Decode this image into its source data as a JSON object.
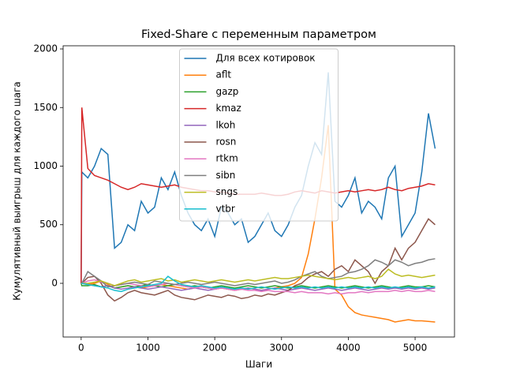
{
  "chart_data": {
    "type": "line",
    "title": "Fixed-Share с переменным параметром",
    "x_label": "Шаги",
    "y_label": "Кумулятивный выигрыш для каждого шага",
    "x": [
      0,
      10,
      100,
      200,
      300,
      400,
      500,
      600,
      700,
      800,
      900,
      1000,
      1100,
      1200,
      1300,
      1400,
      1500,
      1600,
      1700,
      1800,
      1900,
      2000,
      2100,
      2200,
      2300,
      2400,
      2500,
      2600,
      2700,
      2800,
      2900,
      3000,
      3100,
      3200,
      3300,
      3400,
      3500,
      3600,
      3700,
      3800,
      3900,
      4000,
      4100,
      4200,
      4300,
      4400,
      4500,
      4600,
      4700,
      4800,
      4900,
      5000,
      5100,
      5200,
      5300
    ],
    "series": [
      {
        "name": "Для всех котировок",
        "color": "#1f77b4",
        "values": [
          0,
          950,
          900,
          1000,
          1150,
          1100,
          300,
          350,
          500,
          450,
          700,
          600,
          650,
          900,
          800,
          950,
          750,
          600,
          500,
          450,
          550,
          400,
          650,
          600,
          500,
          550,
          350,
          400,
          500,
          600,
          450,
          400,
          500,
          650,
          750,
          1000,
          1200,
          1100,
          1800,
          700,
          650,
          750,
          900,
          600,
          700,
          650,
          550,
          900,
          1000,
          400,
          500,
          600,
          950,
          1450,
          1150
        ]
      },
      {
        "name": "aflt",
        "color": "#ff7f0e",
        "values": [
          0,
          0,
          -10,
          0,
          20,
          -10,
          -40,
          -30,
          -20,
          -30,
          -40,
          -30,
          -20,
          -10,
          -20,
          -30,
          -40,
          -50,
          -40,
          -30,
          -40,
          -50,
          -40,
          -50,
          -60,
          -50,
          -40,
          -50,
          -60,
          -50,
          -40,
          -30,
          -20,
          0,
          50,
          250,
          550,
          900,
          1350,
          -50,
          -100,
          -200,
          -250,
          -270,
          -280,
          -290,
          -300,
          -310,
          -330,
          -320,
          -310,
          -320,
          -320,
          -325,
          -330
        ]
      },
      {
        "name": "gazp",
        "color": "#2ca02c",
        "values": [
          0,
          -20,
          -20,
          -10,
          -30,
          -20,
          -40,
          -30,
          -20,
          -30,
          -20,
          -10,
          -20,
          -30,
          -20,
          -10,
          -20,
          -30,
          -20,
          -30,
          -40,
          -30,
          -20,
          -30,
          -40,
          -30,
          -20,
          -30,
          -40,
          -30,
          -20,
          -30,
          -40,
          -30,
          -20,
          -30,
          -40,
          -30,
          -20,
          -30,
          -40,
          -30,
          -20,
          -30,
          -40,
          -30,
          -20,
          -30,
          -40,
          -30,
          -20,
          -30,
          -30,
          -20,
          -30
        ]
      },
      {
        "name": "kmaz",
        "color": "#d62728",
        "values": [
          0,
          1500,
          980,
          920,
          900,
          880,
          850,
          820,
          800,
          820,
          850,
          840,
          830,
          820,
          830,
          840,
          820,
          810,
          800,
          790,
          790,
          780,
          780,
          770,
          760,
          760,
          760,
          760,
          770,
          760,
          750,
          750,
          760,
          780,
          790,
          780,
          770,
          790,
          780,
          770,
          780,
          790,
          780,
          790,
          800,
          790,
          800,
          820,
          800,
          790,
          810,
          820,
          830,
          850,
          840
        ]
      },
      {
        "name": "lkoh",
        "color": "#9467bd",
        "values": [
          0,
          0,
          -10,
          -20,
          -30,
          -20,
          -40,
          -50,
          -40,
          -30,
          -40,
          -50,
          -40,
          -30,
          -40,
          -50,
          -60,
          -50,
          -40,
          -50,
          -60,
          -50,
          -40,
          -50,
          -60,
          -50,
          -40,
          -50,
          -60,
          -50,
          -40,
          -50,
          -60,
          -50,
          -40,
          -50,
          -60,
          -50,
          -40,
          -50,
          -60,
          -50,
          -40,
          -50,
          -60,
          -50,
          -40,
          -50,
          -40,
          -50,
          -40,
          -50,
          -40,
          -50,
          -40
        ]
      },
      {
        "name": "rosn",
        "color": "#8c564b",
        "values": [
          0,
          0,
          50,
          60,
          0,
          -100,
          -150,
          -120,
          -80,
          -60,
          -80,
          -90,
          -100,
          -80,
          -60,
          -100,
          -120,
          -130,
          -140,
          -120,
          -100,
          -110,
          -120,
          -100,
          -110,
          -130,
          -120,
          -100,
          -110,
          -90,
          -100,
          -80,
          -60,
          -20,
          0,
          50,
          80,
          100,
          60,
          120,
          150,
          100,
          200,
          150,
          100,
          0,
          100,
          150,
          300,
          200,
          300,
          350,
          450,
          550,
          500
        ]
      },
      {
        "name": "rtkm",
        "color": "#e377c2",
        "values": [
          0,
          0,
          20,
          30,
          10,
          0,
          -20,
          -10,
          0,
          -10,
          -20,
          -30,
          -20,
          -10,
          0,
          -10,
          -20,
          -30,
          -40,
          -30,
          -40,
          -50,
          -40,
          -50,
          -60,
          -50,
          -60,
          -60,
          -70,
          -60,
          -70,
          -70,
          -70,
          -80,
          -70,
          -80,
          -80,
          -80,
          -90,
          -80,
          -90,
          -80,
          -80,
          -70,
          -80,
          -70,
          -70,
          -70,
          -60,
          -70,
          -60,
          -70,
          -70,
          -60,
          -70
        ]
      },
      {
        "name": "sibn",
        "color": "#7f7f7f",
        "values": [
          0,
          0,
          100,
          60,
          20,
          -30,
          -20,
          -10,
          0,
          10,
          0,
          -10,
          20,
          10,
          0,
          -10,
          0,
          10,
          0,
          -10,
          0,
          10,
          0,
          -10,
          -20,
          -10,
          0,
          -10,
          0,
          10,
          20,
          0,
          10,
          30,
          60,
          80,
          100,
          60,
          40,
          50,
          60,
          90,
          100,
          120,
          150,
          200,
          180,
          150,
          200,
          180,
          150,
          170,
          180,
          200,
          210
        ]
      },
      {
        "name": "sngs",
        "color": "#bcbd22",
        "values": [
          0,
          0,
          0,
          10,
          20,
          0,
          -20,
          0,
          20,
          30,
          10,
          20,
          30,
          40,
          20,
          30,
          10,
          20,
          30,
          20,
          10,
          20,
          30,
          20,
          10,
          20,
          30,
          20,
          30,
          40,
          50,
          40,
          40,
          50,
          60,
          70,
          60,
          50,
          40,
          30,
          40,
          50,
          40,
          50,
          60,
          40,
          60,
          120,
          80,
          60,
          70,
          60,
          50,
          60,
          70
        ]
      },
      {
        "name": "vtbr",
        "color": "#17becf",
        "values": [
          0,
          0,
          -10,
          -20,
          -30,
          -40,
          -60,
          -70,
          -50,
          -40,
          -30,
          -20,
          -10,
          0,
          60,
          20,
          -10,
          -20,
          -30,
          -20,
          -30,
          -40,
          -30,
          -40,
          -50,
          -40,
          -50,
          -40,
          -30,
          -40,
          -50,
          -40,
          -30,
          -40,
          -30,
          -40,
          -30,
          -40,
          -30,
          -40,
          -30,
          -40,
          -30,
          -40,
          -30,
          -40,
          -30,
          -40,
          -30,
          -40,
          -30,
          -40,
          -30,
          -40,
          -30
        ]
      }
    ],
    "xlim": [
      -270,
      5590
    ],
    "ylim": [
      -458,
      2027
    ],
    "xticks": [
      0,
      1000,
      2000,
      3000,
      4000,
      5000
    ],
    "yticks": [
      0,
      500,
      1000,
      1500,
      2000
    ],
    "legend": "upper center"
  }
}
